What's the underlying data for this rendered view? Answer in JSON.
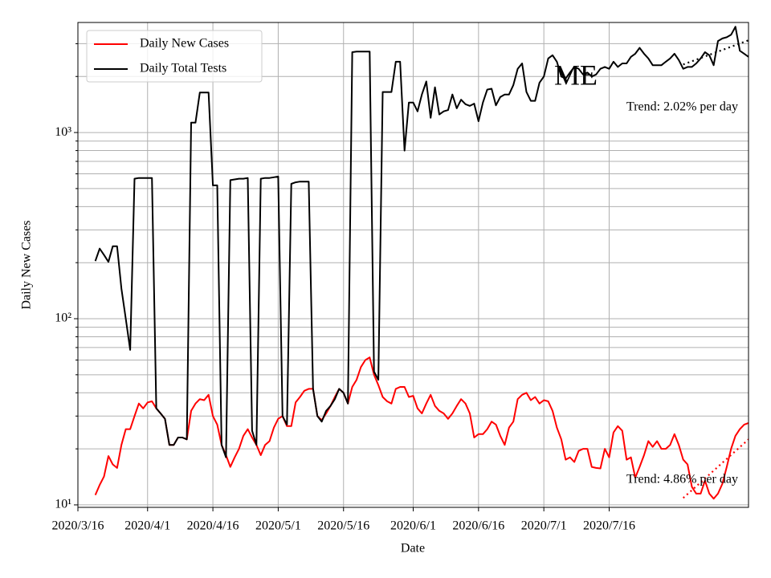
{
  "chart_data": {
    "type": "line",
    "xlabel": "Date",
    "ylabel": "Daily New Cases",
    "log_y": true,
    "grid": true,
    "legend": "upper left",
    "x": [
      "2020-03-20",
      "2020-03-21",
      "2020-03-22",
      "2020-03-23",
      "2020-03-24",
      "2020-03-25",
      "2020-03-26",
      "2020-03-27",
      "2020-03-28",
      "2020-03-29",
      "2020-03-30",
      "2020-03-31",
      "2020-04-01",
      "2020-04-02",
      "2020-04-03",
      "2020-04-04",
      "2020-04-05",
      "2020-04-06",
      "2020-04-07",
      "2020-04-08",
      "2020-04-09",
      "2020-04-10",
      "2020-04-11",
      "2020-04-12",
      "2020-04-13",
      "2020-04-14",
      "2020-04-15",
      "2020-04-16",
      "2020-04-17",
      "2020-04-18",
      "2020-04-19",
      "2020-04-20",
      "2020-04-21",
      "2020-04-22",
      "2020-04-23",
      "2020-04-24",
      "2020-04-25",
      "2020-04-26",
      "2020-04-27",
      "2020-04-28",
      "2020-04-29",
      "2020-04-30",
      "2020-05-01",
      "2020-05-02",
      "2020-05-03",
      "2020-05-04",
      "2020-05-05",
      "2020-05-06",
      "2020-05-07",
      "2020-05-08",
      "2020-05-09",
      "2020-05-10",
      "2020-05-11",
      "2020-05-12",
      "2020-05-13",
      "2020-05-14",
      "2020-05-15",
      "2020-05-16",
      "2020-05-17",
      "2020-05-18",
      "2020-05-19",
      "2020-05-20",
      "2020-05-21",
      "2020-05-22",
      "2020-05-23",
      "2020-05-24",
      "2020-05-25",
      "2020-05-26",
      "2020-05-27",
      "2020-05-28",
      "2020-05-29",
      "2020-05-30",
      "2020-05-31",
      "2020-06-01",
      "2020-06-02",
      "2020-06-03",
      "2020-06-04",
      "2020-06-05",
      "2020-06-06",
      "2020-06-07",
      "2020-06-08",
      "2020-06-09",
      "2020-06-10",
      "2020-06-11",
      "2020-06-12",
      "2020-06-13",
      "2020-06-14",
      "2020-06-15",
      "2020-06-16",
      "2020-06-17",
      "2020-06-18",
      "2020-06-19",
      "2020-06-20",
      "2020-06-21",
      "2020-06-22",
      "2020-06-23",
      "2020-06-24",
      "2020-06-25",
      "2020-06-26",
      "2020-06-27",
      "2020-06-28",
      "2020-06-29",
      "2020-06-30",
      "2020-07-01",
      "2020-07-02",
      "2020-07-03",
      "2020-07-04",
      "2020-07-05",
      "2020-07-06",
      "2020-07-07",
      "2020-07-08",
      "2020-07-09",
      "2020-07-10",
      "2020-07-11",
      "2020-07-12",
      "2020-07-13",
      "2020-07-14",
      "2020-07-15",
      "2020-07-16",
      "2020-07-17",
      "2020-07-18",
      "2020-07-19",
      "2020-07-20",
      "2020-07-21",
      "2020-07-22",
      "2020-07-23",
      "2020-07-24",
      "2020-07-25",
      "2020-07-26",
      "2020-07-27",
      "2020-07-28",
      "2020-07-29",
      "2020-07-30",
      "2020-07-31",
      "2020-08-01",
      "2020-08-02",
      "2020-08-03",
      "2020-08-04",
      "2020-08-05",
      "2020-08-06",
      "2020-08-07",
      "2020-08-08",
      "2020-08-09",
      "2020-08-10",
      "2020-08-11",
      "2020-08-12",
      "2020-08-13",
      "2020-08-14",
      "2020-08-15",
      "2020-08-16",
      "2020-08-17"
    ],
    "series": [
      {
        "name": "Daily New Cases",
        "color": "#ff0000",
        "values": [
          11.3,
          12.8,
          14.2,
          18.3,
          16.5,
          15.8,
          21,
          25.5,
          25.5,
          30,
          35,
          33,
          35.5,
          36,
          33,
          31,
          29,
          21,
          21,
          23,
          23,
          22.5,
          32,
          35,
          37,
          36.5,
          39,
          30,
          27,
          21,
          18.5,
          16,
          18,
          20,
          23.5,
          25.5,
          23,
          21,
          18.5,
          21,
          22,
          26,
          29,
          30,
          26.5,
          26.5,
          35.5,
          38,
          41,
          42,
          42,
          30,
          28.5,
          31,
          34,
          38,
          42,
          40,
          35,
          43,
          47,
          55,
          60,
          62,
          50,
          44,
          38,
          36,
          35,
          42,
          43,
          43,
          38,
          38.5,
          33,
          31,
          35,
          39,
          34,
          32,
          31,
          29,
          31,
          34,
          37,
          35,
          31,
          23,
          24,
          24,
          25.5,
          28,
          27,
          23.5,
          21,
          26,
          28,
          37,
          39,
          40,
          36.5,
          38,
          35,
          36.5,
          36,
          32,
          26,
          22.5,
          17.5,
          18,
          17,
          19.5,
          20,
          20,
          16,
          15.8,
          15.7,
          20,
          18,
          24.5,
          26.5,
          25,
          17.5,
          18,
          14,
          16,
          18.5,
          22,
          20.5,
          22,
          20,
          20,
          21,
          24,
          21,
          17.5,
          16.5,
          12.5,
          11.5,
          11.5,
          13.5,
          11.5,
          10.8,
          11.5,
          13,
          16,
          20,
          23.5,
          25.5,
          27,
          27.5
        ]
      },
      {
        "name": "Daily Total Tests",
        "color": "#000000",
        "values": [
          204,
          238,
          220,
          202,
          245,
          245,
          145,
          100,
          68,
          565,
          570,
          570,
          570,
          570,
          33,
          31,
          29,
          21,
          21,
          23,
          23,
          22.5,
          1130,
          1130,
          1640,
          1640,
          1640,
          520,
          520,
          21,
          18,
          555,
          560,
          565,
          565,
          570,
          25,
          21,
          565,
          570,
          570,
          575,
          580,
          30,
          27,
          530,
          540,
          545,
          545,
          545,
          42,
          30,
          28,
          32,
          34,
          37,
          42,
          40,
          35,
          2700,
          2720,
          2720,
          2720,
          2720,
          52,
          47,
          1650,
          1650,
          1650,
          2400,
          2400,
          800,
          1450,
          1450,
          1300,
          1600,
          1880,
          1200,
          1750,
          1250,
          1300,
          1320,
          1600,
          1350,
          1500,
          1420,
          1390,
          1430,
          1150,
          1450,
          1700,
          1720,
          1400,
          1550,
          1600,
          1600,
          1800,
          2200,
          2350,
          1650,
          1480,
          1480,
          1850,
          2000,
          2500,
          2600,
          2400,
          2000,
          1950,
          2100,
          2250,
          2200,
          2050,
          2100,
          2000,
          2050,
          2200,
          2250,
          2200,
          2400,
          2250,
          2350,
          2350,
          2550,
          2650,
          2850,
          2650,
          2500,
          2300,
          2300,
          2300,
          2400,
          2500,
          2650,
          2450,
          2200,
          2250,
          2250,
          2350,
          2500,
          2700,
          2600,
          2300,
          3100,
          3200,
          3250,
          3350,
          3700,
          2750,
          2650,
          2550
        ]
      }
    ],
    "trends": [
      {
        "color": "#000000",
        "x": [
          "2020-08-02",
          "2020-08-17"
        ],
        "values": [
          2320,
          3130
        ]
      },
      {
        "color": "#ff0000",
        "x": [
          "2020-08-02",
          "2020-08-17"
        ],
        "values": [
          10.9,
          22.5
        ]
      }
    ],
    "annotations": [
      "ME",
      "Trend: 2.02% per day",
      "Trend: 4.86% per day"
    ],
    "xlim": [
      "2020-03-16",
      "2020-08-17"
    ],
    "xticks": [
      {
        "value": "2020-03-16",
        "label": "2020/3/16"
      },
      {
        "value": "2020-04-01",
        "label": "2020/4/1"
      },
      {
        "value": "2020-04-16",
        "label": "2020/4/16"
      },
      {
        "value": "2020-05-01",
        "label": "2020/5/1"
      },
      {
        "value": "2020-05-16",
        "label": "2020/5/16"
      },
      {
        "value": "2020-06-01",
        "label": "2020/6/1"
      },
      {
        "value": "2020-06-16",
        "label": "2020/6/16"
      },
      {
        "value": "2020-07-01",
        "label": "2020/7/1"
      },
      {
        "value": "2020-07-16",
        "label": "2020/7/16"
      }
    ],
    "ylim": [
      9.7,
      3900
    ],
    "yticks": [
      {
        "value": 10,
        "label": "10¹"
      },
      {
        "value": 100,
        "label": "10²"
      },
      {
        "value": 1000,
        "label": "10³"
      }
    ],
    "yminor_ticks": [
      20,
      30,
      40,
      50,
      60,
      70,
      80,
      90,
      200,
      300,
      400,
      500,
      600,
      700,
      800,
      900,
      2000,
      3000
    ]
  }
}
